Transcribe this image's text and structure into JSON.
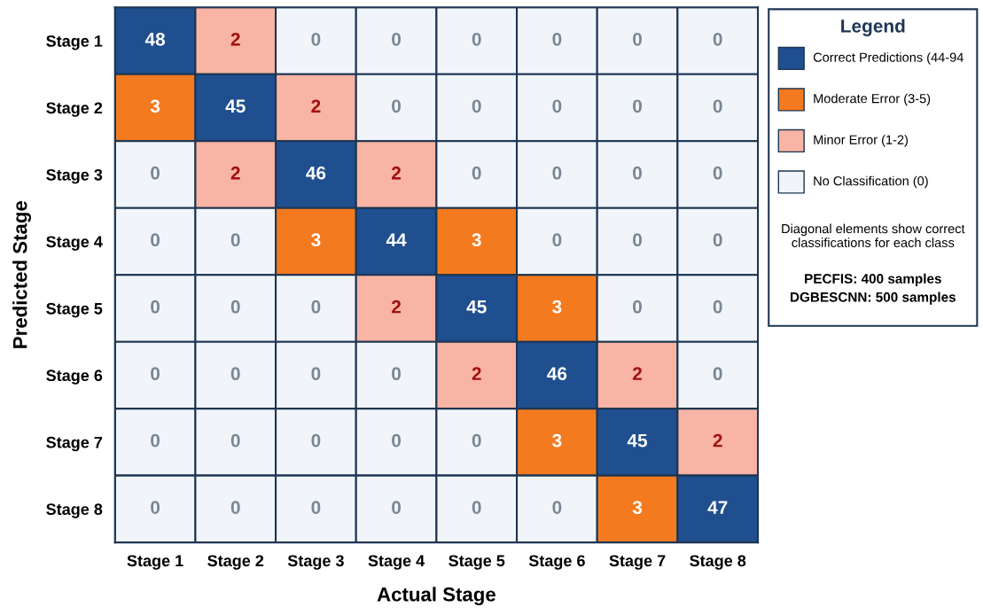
{
  "chart_data": {
    "type": "heatmap",
    "xlabel": "Actual Stage",
    "ylabel": "Predicted Stage",
    "legend_title": "Legend",
    "categories": [
      "Stage 1",
      "Stage 2",
      "Stage 3",
      "Stage 4",
      "Stage 5",
      "Stage 6",
      "Stage 7",
      "Stage 8"
    ],
    "y_categories": [
      "Stage 1",
      "Stage 2",
      "Stage 3",
      "Stage 4",
      "Stage 5",
      "Stage 6",
      "Stage 7",
      "Stage 8"
    ],
    "cells": [
      [
        48,
        2,
        0,
        0,
        0,
        0,
        0,
        0
      ],
      [
        3,
        45,
        2,
        0,
        0,
        0,
        0,
        0
      ],
      [
        0,
        2,
        46,
        2,
        0,
        0,
        0,
        0
      ],
      [
        0,
        0,
        3,
        44,
        3,
        0,
        0,
        0
      ],
      [
        0,
        0,
        0,
        2,
        45,
        3,
        0,
        0
      ],
      [
        0,
        0,
        0,
        0,
        2,
        46,
        2,
        0
      ],
      [
        0,
        0,
        0,
        0,
        0,
        3,
        45,
        2
      ],
      [
        0,
        0,
        0,
        0,
        0,
        0,
        3,
        47
      ]
    ],
    "data_labels": true,
    "colors": [
      [
        "#1f4f8f",
        "#f8b4a4",
        "#f1f5f9",
        "#f1f5f9",
        "#f1f5f9",
        "#f1f5f9",
        "#f1f5f9",
        "#f1f5f9"
      ],
      [
        "#f47a1f",
        "#1f4f8f",
        "#f8b4a4",
        "#f1f5f9",
        "#f1f5f9",
        "#f1f5f9",
        "#f1f5f9",
        "#f1f5f9"
      ],
      [
        "#f1f5f9",
        "#f8b4a4",
        "#1f4f8f",
        "#f8b4a4",
        "#f1f5f9",
        "#f1f5f9",
        "#f1f5f9",
        "#f1f5f9"
      ],
      [
        "#f1f5f9",
        "#f1f5f9",
        "#f47a1f",
        "#1f4f8f",
        "#f47a1f",
        "#f1f5f9",
        "#f1f5f9",
        "#f1f5f9"
      ],
      [
        "#f1f5f9",
        "#f1f5f9",
        "#f1f5f9",
        "#f8b4a4",
        "#1f4f8f",
        "#f47a1f",
        "#f1f5f9",
        "#f1f5f9"
      ],
      [
        "#f1f5f9",
        "#f1f5f9",
        "#f1f5f9",
        "#f1f5f9",
        "#f8b4a4",
        "#1f4f8f",
        "#f8b4a4",
        "#f1f5f9"
      ],
      [
        "#f1f5f9",
        "#f1f5f9",
        "#f1f5f9",
        "#f1f5f9",
        "#f1f5f9",
        "#f47a1f",
        "#1f4f8f",
        "#f8b4a4"
      ],
      [
        "#f1f5f9",
        "#f1f5f9",
        "#f1f5f9",
        "#f1f5f9",
        "#f1f5f9",
        "#f1f5f9",
        "#f47a1f",
        "#1f4f8f"
      ]
    ],
    "annotations": [
      "Correct Predictions (44-94",
      "Moderate Error (3-5)",
      "Minor Error (1-2)",
      "No Classification (0)",
      "Diagonal elements show correct classifications for each class",
      "PECFIS: 400 samples",
      "DGBESCNN: 500 samples"
    ]
  }
}
